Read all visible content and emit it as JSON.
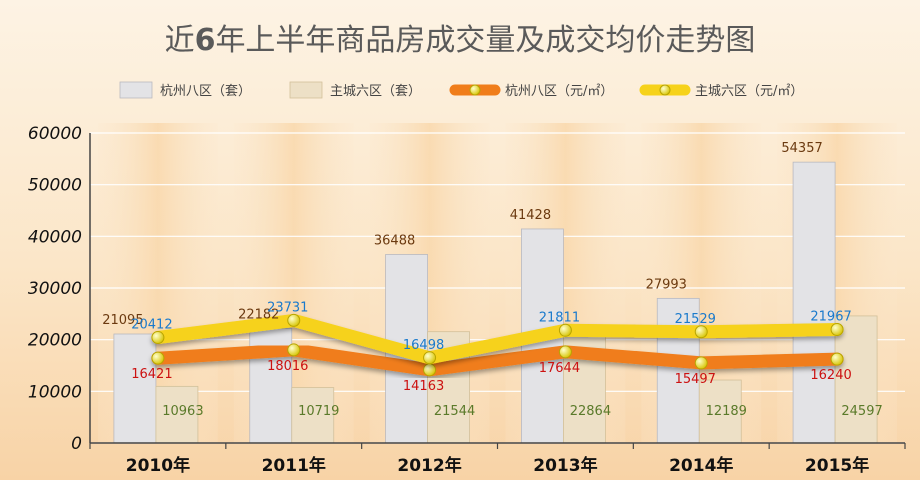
{
  "chart_data": {
    "type": "bar",
    "title_parts": [
      "近",
      "6",
      "年上半年商品房成交量及成交均价走势图"
    ],
    "categories": [
      "2010年",
      "2011年",
      "2012年",
      "2013年",
      "2014年",
      "2015年"
    ],
    "ylim": [
      0,
      60000
    ],
    "yticks": [
      0,
      10000,
      20000,
      30000,
      40000,
      50000,
      60000
    ],
    "grid": true,
    "legend_position": "top",
    "series": [
      {
        "name": "杭州八区（套）",
        "type": "bar",
        "values": [
          21095,
          22182,
          36488,
          41428,
          27993,
          54357
        ],
        "color": "#e3e3e6",
        "label_color": "#6b3a10"
      },
      {
        "name": "主城六区（套）",
        "type": "bar",
        "values": [
          10963,
          10719,
          21544,
          22864,
          12189,
          24597
        ],
        "color": "#ede0c6",
        "label_color": "#5a7a2a"
      },
      {
        "name": "杭州八区（元/㎡）",
        "type": "line",
        "values": [
          16421,
          18016,
          14163,
          17644,
          15497,
          16240
        ],
        "color": "#f07d1a",
        "label_color": "#cc1111"
      },
      {
        "name": "主城六区（元/㎡）",
        "type": "line",
        "values": [
          20412,
          23731,
          16498,
          21811,
          21529,
          21967
        ],
        "color": "#f6d21a",
        "label_color": "#1a7acc"
      }
    ]
  }
}
